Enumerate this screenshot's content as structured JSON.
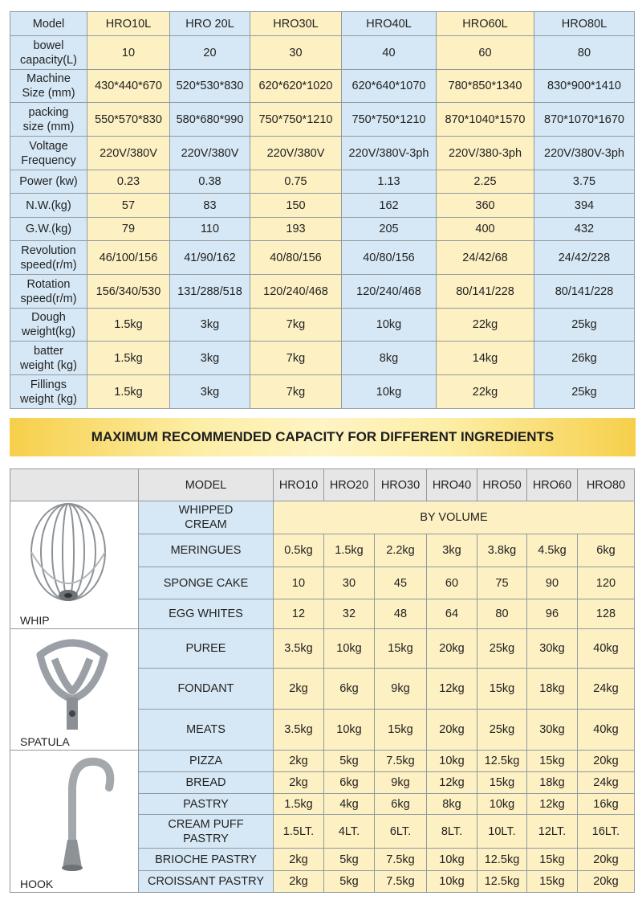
{
  "spec_table": {
    "header": [
      "Model",
      "HRO10L",
      "HRO 20L",
      "HRO30L",
      "HRO40L",
      "HRO60L",
      "HRO80L"
    ],
    "rows": [
      {
        "label": "bowel\ncapacity(L)",
        "cells": [
          "10",
          "20",
          "30",
          "40",
          "60",
          "80"
        ]
      },
      {
        "label": "Machine\nSize (mm)",
        "cells": [
          "430*440*670",
          "520*530*830",
          "620*620*1020",
          "620*640*1070",
          "780*850*1340",
          "830*900*1410"
        ]
      },
      {
        "label": "packing\nsize (mm)",
        "cells": [
          "550*570*830",
          "580*680*990",
          "750*750*1210",
          "750*750*1210",
          "870*1040*1570",
          "870*1070*1670"
        ]
      },
      {
        "label": "Voltage\nFrequency",
        "cells": [
          "220V/380V",
          "220V/380V",
          "220V/380V",
          "220V/380V-3ph",
          "220V/380-3ph",
          "220V/380V-3ph"
        ]
      },
      {
        "label": "Power (kw)",
        "cells": [
          "0.23",
          "0.38",
          "0.75",
          "1.13",
          "2.25",
          "3.75"
        ]
      },
      {
        "label": "N.W.(kg)",
        "cells": [
          "57",
          "83",
          "150",
          "162",
          "360",
          "394"
        ]
      },
      {
        "label": "G.W.(kg)",
        "cells": [
          "79",
          "110",
          "193",
          "205",
          "400",
          "432"
        ]
      },
      {
        "label": "Revolution\nspeed(r/m)",
        "cells": [
          "46/100/156",
          "41/90/162",
          "40/80/156",
          "40/80/156",
          "24/42/68",
          "24/42/228"
        ]
      },
      {
        "label": "Rotation\nspeed(r/m)",
        "cells": [
          "156/340/530",
          "131/288/518",
          "120/240/468",
          "120/240/468",
          "80/141/228",
          "80/141/228"
        ]
      },
      {
        "label": "Dough\nweight(kg)",
        "cells": [
          "1.5kg",
          "3kg",
          "7kg",
          "10kg",
          "22kg",
          "25kg"
        ]
      },
      {
        "label": "batter\nweight (kg)",
        "cells": [
          "1.5kg",
          "3kg",
          "7kg",
          "8kg",
          "14kg",
          "26kg"
        ]
      },
      {
        "label": "Fillings\nweight (kg)",
        "cells": [
          "1.5kg",
          "3kg",
          "7kg",
          "10kg",
          "22kg",
          "25kg"
        ]
      }
    ]
  },
  "banner": "MAXIMUM RECOMMENDED CAPACITY FOR DIFFERENT INGREDIENTS",
  "capacity_table": {
    "header": [
      "MODEL",
      "HRO10",
      "HRO20",
      "HRO30",
      "HRO40",
      "HRO50",
      "HRO60",
      "HRO80"
    ],
    "groups": [
      {
        "tool": "WHIP",
        "rows": [
          {
            "label": "WHIPPED\nCREAM",
            "cells": [
              "BY VOLUME"
            ]
          },
          {
            "label": "MERINGUES",
            "cells": [
              "0.5kg",
              "1.5kg",
              "2.2kg",
              "3kg",
              "3.8kg",
              "4.5kg",
              "6kg"
            ]
          },
          {
            "label": "SPONGE CAKE",
            "cells": [
              "10",
              "30",
              "45",
              "60",
              "75",
              "90",
              "120"
            ]
          },
          {
            "label": "EGG WHITES",
            "cells": [
              "12",
              "32",
              "48",
              "64",
              "80",
              "96",
              "128"
            ]
          }
        ]
      },
      {
        "tool": "SPATULA",
        "rows": [
          {
            "label": "PUREE",
            "cells": [
              "3.5kg",
              "10kg",
              "15kg",
              "20kg",
              "25kg",
              "30kg",
              "40kg"
            ]
          },
          {
            "label": "FONDANT",
            "cells": [
              "2kg",
              "6kg",
              "9kg",
              "12kg",
              "15kg",
              "18kg",
              "24kg"
            ]
          },
          {
            "label": "MEATS",
            "cells": [
              "3.5kg",
              "10kg",
              "15kg",
              "20kg",
              "25kg",
              "30kg",
              "40kg"
            ]
          }
        ]
      },
      {
        "tool": "HOOK",
        "rows": [
          {
            "label": "PIZZA",
            "cells": [
              "2kg",
              "5kg",
              "7.5kg",
              "10kg",
              "12.5kg",
              "15kg",
              "20kg"
            ]
          },
          {
            "label": "BREAD",
            "cells": [
              "2kg",
              "6kg",
              "9kg",
              "12kg",
              "15kg",
              "18kg",
              "24kg"
            ]
          },
          {
            "label": "PASTRY",
            "cells": [
              "1.5kg",
              "4kg",
              "6kg",
              "8kg",
              "10kg",
              "12kg",
              "16kg"
            ]
          },
          {
            "label": "CREAM PUFF\nPASTRY",
            "cells": [
              "1.5LT.",
              "4LT.",
              "6LT.",
              "8LT.",
              "10LT.",
              "12LT.",
              "16LT."
            ]
          },
          {
            "label": "BRIOCHE PASTRY",
            "cells": [
              "2kg",
              "5kg",
              "7.5kg",
              "10kg",
              "12.5kg",
              "15kg",
              "20kg"
            ]
          },
          {
            "label": "CROISSANT PASTRY",
            "cells": [
              "2kg",
              "5kg",
              "7.5kg",
              "10kg",
              "12.5kg",
              "15kg",
              "20kg"
            ]
          }
        ]
      }
    ]
  }
}
